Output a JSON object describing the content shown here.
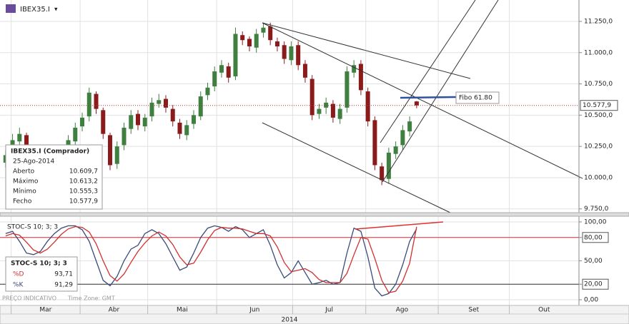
{
  "header": {
    "symbol": "IBEX35.I",
    "menu": "▾"
  },
  "info": {
    "title": "IBEX35.I (Comprador)",
    "date": "25-Ago-2014",
    "rows": [
      {
        "label": "Aberto",
        "value": "10.609,7"
      },
      {
        "label": "Máximo",
        "value": "10.613,2"
      },
      {
        "label": "Mínimo",
        "value": "10.555,3"
      },
      {
        "label": "Fecho",
        "value": "10.577,9"
      }
    ]
  },
  "stoch_box": {
    "title": "STOC-S 10; 3; 3",
    "rows": [
      {
        "name": "%D",
        "value": "93,71",
        "color": "#d03030"
      },
      {
        "name": "%K",
        "value": "91,29",
        "color": "#3a4a7a"
      }
    ]
  },
  "footer": {
    "note": "PREÇO INDICATIVO",
    "timezone": "Time Zone: GMT",
    "year": "2014"
  },
  "chart_data": [
    {
      "type": "candlestick",
      "annotation": "Fibo 61.80",
      "xlim": [
        -0.8,
        82.3
      ],
      "xticks": [
        {
          "value": 0.8,
          "label": "Mar"
        },
        {
          "value": 10.7,
          "label": "Abr"
        },
        {
          "value": 20.4,
          "label": "Mai"
        },
        {
          "value": 30.3,
          "label": "Jun"
        },
        {
          "value": 41.2,
          "label": "Jul"
        },
        {
          "value": 51.7,
          "label": "Ago"
        },
        {
          "value": 62.1,
          "label": "Set"
        },
        {
          "value": 72.3,
          "label": "Out"
        }
      ],
      "ylim": [
        9720,
        11421
      ],
      "yticks": [
        {
          "value": 9750,
          "label": "9.750,0"
        },
        {
          "value": 10000,
          "label": "10.000,0"
        },
        {
          "value": 10250,
          "label": "10.250,0"
        },
        {
          "value": 10500,
          "label": "10.500,0"
        },
        {
          "value": 10750,
          "label": "10.750,0"
        },
        {
          "value": 11000,
          "label": "11.000,0"
        },
        {
          "value": 11250,
          "label": "11.250,0"
        }
      ],
      "grid": true,
      "last_price": {
        "value": 10577.9,
        "label": "10.577,9",
        "color": "#c03030"
      },
      "up_color": "#3f7f3f",
      "down_color": "#8b1a1a",
      "series": [
        {
          "name": "IBEX35.I",
          "open": [
            10120,
            10190,
            10290,
            10340,
            10240,
            10110,
            10060,
            10010,
            10090,
            10160,
            10290,
            10410,
            10490,
            10670,
            10540,
            10340,
            10110,
            10260,
            10390,
            10510,
            10410,
            10490,
            10590,
            10630,
            10550,
            10440,
            10340,
            10430,
            10490,
            10660,
            10730,
            10840,
            10890,
            10810,
            11140,
            11110,
            11040,
            11160,
            11210,
            11090,
            11060,
            10940,
            11060,
            10910,
            10790,
            10510,
            10560,
            10590,
            10470,
            10560,
            10840,
            10910,
            10690,
            10460,
            10090,
            9990,
            10190,
            10260,
            10370,
            10609.7
          ],
          "high": [
            10220,
            10350,
            10400,
            10360,
            10260,
            10140,
            10080,
            10120,
            10190,
            10340,
            10440,
            10520,
            10720,
            10690,
            10560,
            10360,
            10290,
            10440,
            10540,
            10540,
            10510,
            10640,
            10670,
            10660,
            10580,
            10470,
            10460,
            10540,
            10690,
            10760,
            10890,
            10940,
            10920,
            11200,
            11170,
            11130,
            11190,
            11240,
            11240,
            11120,
            11090,
            11090,
            11090,
            10940,
            10820,
            10590,
            10640,
            10620,
            10590,
            10890,
            10940,
            10940,
            10720,
            10490,
            10120,
            10240,
            10290,
            10420,
            10490,
            10613.2
          ],
          "low": [
            10080,
            10150,
            10250,
            10210,
            10060,
            10000,
            9960,
            9970,
            10050,
            10120,
            10250,
            10370,
            10450,
            10510,
            10310,
            10060,
            10070,
            10220,
            10350,
            10380,
            10370,
            10450,
            10560,
            10520,
            10410,
            10310,
            10300,
            10390,
            10460,
            10620,
            10690,
            10800,
            10760,
            10780,
            11060,
            11010,
            11000,
            11120,
            11060,
            11010,
            10910,
            10900,
            10860,
            10760,
            10460,
            10470,
            10510,
            10440,
            10430,
            10520,
            10800,
            10660,
            10410,
            10060,
            9940,
            9950,
            10150,
            10220,
            10330,
            10555.3
          ],
          "close": [
            10180,
            10300,
            10350,
            10250,
            10100,
            10050,
            10000,
            10080,
            10150,
            10300,
            10400,
            10480,
            10680,
            10550,
            10350,
            10100,
            10250,
            10400,
            10500,
            10420,
            10480,
            10600,
            10620,
            10560,
            10450,
            10350,
            10420,
            10500,
            10650,
            10720,
            10850,
            10900,
            10800,
            11150,
            11100,
            11050,
            11150,
            11200,
            11100,
            11050,
            10950,
            11050,
            10900,
            10800,
            10500,
            10550,
            10600,
            10480,
            10550,
            10850,
            10900,
            10700,
            10450,
            10100,
            9980,
            10200,
            10250,
            10380,
            10450,
            10577.9
          ]
        }
      ]
    },
    {
      "type": "line",
      "title": "STOC-S 10; 3; 3",
      "xlim": [
        -0.8,
        82.3
      ],
      "ylim": [
        -7.3,
        107.3
      ],
      "yticks": [
        {
          "value": 0,
          "label": "0,00"
        },
        {
          "value": 20,
          "label": "20,00"
        },
        {
          "value": 50,
          "label": "50,00"
        },
        {
          "value": 80,
          "label": "80,00"
        },
        {
          "value": 100,
          "label": "100,00"
        }
      ],
      "hlines": [
        {
          "value": 80,
          "color": "#d03030"
        },
        {
          "value": 20,
          "color": "#333333"
        }
      ],
      "series": [
        {
          "name": "%K",
          "color": "#3a4a7a",
          "values": [
            85,
            88,
            75,
            60,
            58,
            62,
            75,
            85,
            92,
            95,
            95,
            90,
            75,
            50,
            25,
            18,
            30,
            50,
            65,
            70,
            85,
            90,
            85,
            72,
            55,
            38,
            42,
            60,
            80,
            92,
            95,
            93,
            88,
            94,
            90,
            80,
            85,
            90,
            70,
            45,
            28,
            35,
            50,
            35,
            20,
            22,
            25,
            20,
            22,
            60,
            92,
            88,
            55,
            15,
            5,
            8,
            20,
            45,
            75,
            91.29
          ]
        },
        {
          "name": "%D",
          "color": "#d03030",
          "values": [
            82,
            85,
            83,
            74,
            64,
            60,
            65,
            74,
            84,
            91,
            94,
            93,
            87,
            72,
            50,
            31,
            24,
            33,
            48,
            62,
            73,
            82,
            87,
            82,
            71,
            55,
            45,
            47,
            61,
            77,
            89,
            93,
            92,
            92,
            91,
            88,
            85,
            85,
            82,
            68,
            48,
            36,
            38,
            40,
            35,
            26,
            22,
            22,
            22,
            34,
            58,
            80,
            78,
            53,
            25,
            9,
            11,
            24,
            47,
            93.71
          ]
        }
      ]
    }
  ]
}
